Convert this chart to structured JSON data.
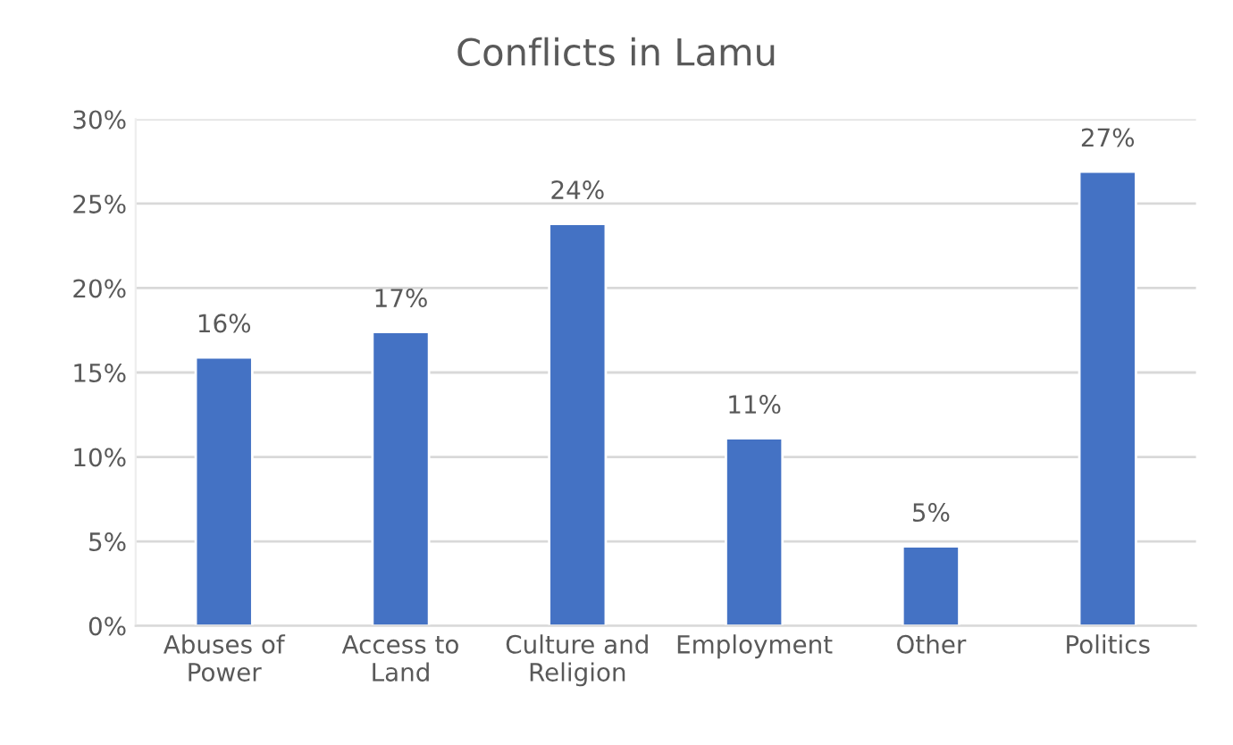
{
  "chart_data": {
    "type": "bar",
    "title": "Conflicts in Lamu",
    "categories": [
      "Abuses of Power",
      "Access to Land",
      "Culture and Religion",
      "Employment",
      "Other",
      "Politics"
    ],
    "values": [
      15.9,
      17.4,
      23.8,
      11.1,
      4.7,
      26.9
    ],
    "value_labels": [
      "16%",
      "17%",
      "24%",
      "11%",
      "5%",
      "27%"
    ],
    "color": "#4472c4",
    "ylim": [
      0,
      30
    ],
    "yticks": [
      {
        "value": 0,
        "label": "0%"
      },
      {
        "value": 5,
        "label": "5%"
      },
      {
        "value": 10,
        "label": "10%"
      },
      {
        "value": 15,
        "label": "15%"
      },
      {
        "value": 20,
        "label": "20%"
      },
      {
        "value": 25,
        "label": "25%"
      },
      {
        "value": 30,
        "label": "30%"
      }
    ],
    "grid": "y",
    "legend": false
  }
}
